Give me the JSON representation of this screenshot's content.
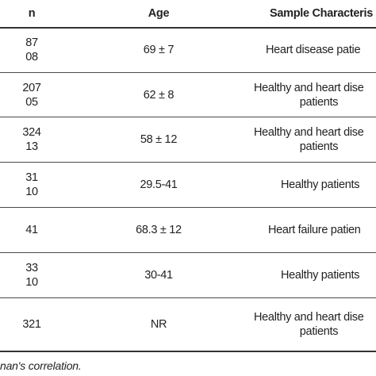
{
  "table": {
    "headers": {
      "n": "n",
      "age": "Age",
      "sample": "Sample Characteris"
    },
    "rows": [
      {
        "n": [
          "87",
          "08"
        ],
        "age": "69 ± 7",
        "sample": [
          "Heart disease patie"
        ]
      },
      {
        "n": [
          "207",
          "05"
        ],
        "age": "62 ± 8",
        "sample": [
          "Healthy and heart dise",
          "patients"
        ]
      },
      {
        "n": [
          "324",
          "13"
        ],
        "age": "58 ± 12",
        "sample": [
          "Healthy and heart dise",
          "patients"
        ]
      },
      {
        "n": [
          "31",
          "10"
        ],
        "age": "29.5-41",
        "sample": [
          "Healthy patients"
        ]
      },
      {
        "n": [
          "41"
        ],
        "age": "68.3 ± 12",
        "sample": [
          "Heart failure patien"
        ]
      },
      {
        "n": [
          "33",
          "10"
        ],
        "age": "30-41",
        "sample": [
          "Healthy patients"
        ]
      },
      {
        "n": [
          "321"
        ],
        "age": "NR",
        "sample": [
          "Healthy and heart dise",
          "patients"
        ]
      }
    ]
  },
  "footnote": "nan's correlation."
}
